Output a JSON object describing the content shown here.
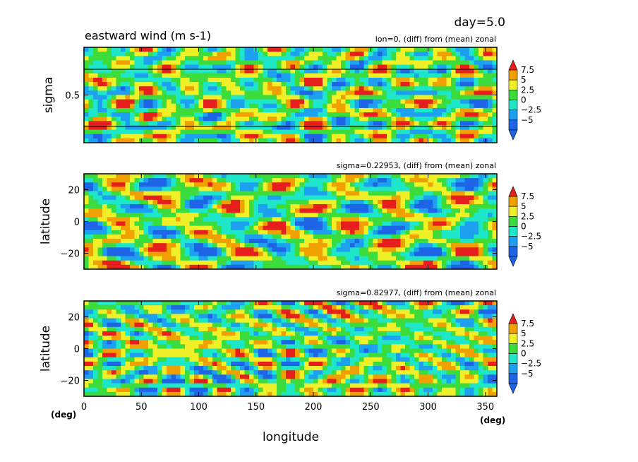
{
  "header": {
    "day_label": "day=5.0",
    "title": "eastward wind (m s-1)"
  },
  "colors": {
    "levels": [
      "#1e64e6",
      "#1ea0f0",
      "#1ee6c8",
      "#3cdc3c",
      "#f0f028",
      "#f0a000",
      "#e61e1e"
    ],
    "frame": "#000000"
  },
  "colorbar": {
    "tick_labels": [
      "7.5",
      "5",
      "2.5",
      "0",
      "−2.5",
      "−5"
    ]
  },
  "panels": [
    {
      "subtitle": "lon=0, (diff) from (mean) zonal",
      "ylabel": "sigma",
      "yticks": [
        "0.5"
      ]
    },
    {
      "subtitle": "sigma=0.22953, (diff) from (mean) zonal",
      "ylabel": "latitude",
      "yticks": [
        "20",
        "0",
        "−20"
      ]
    },
    {
      "subtitle": "sigma=0.82977, (diff) from (mean) zonal",
      "ylabel": "latitude",
      "yticks": [
        "20",
        "0",
        "−20"
      ]
    }
  ],
  "xaxis": {
    "label": "longitude",
    "ticks": [
      "0",
      "50",
      "100",
      "150",
      "200",
      "250",
      "300",
      "350"
    ],
    "unit_left": "(deg)",
    "unit_right": "(deg)"
  },
  "chart_data": [
    {
      "type": "heatmap",
      "variable": "eastward wind (m s-1)",
      "slice": "lon=0, (diff) from (mean) zonal",
      "x_range": [
        0,
        360
      ],
      "y_range": [
        0,
        1
      ],
      "ylabel": "sigma",
      "xlabel": "longitude",
      "contour_levels": [
        -5,
        -2.5,
        0,
        2.5,
        5,
        7.5
      ],
      "reference_lines_sigma": [
        0.22953,
        0.82977
      ]
    },
    {
      "type": "heatmap",
      "variable": "eastward wind (m s-1)",
      "slice": "sigma=0.22953, (diff) from (mean) zonal",
      "x_range": [
        0,
        360
      ],
      "y_range": [
        -30,
        30
      ],
      "ylabel": "latitude",
      "xlabel": "longitude",
      "contour_levels": [
        -5,
        -2.5,
        0,
        2.5,
        5,
        7.5
      ]
    },
    {
      "type": "heatmap",
      "variable": "eastward wind (m s-1)",
      "slice": "sigma=0.82977, (diff) from (mean) zonal",
      "x_range": [
        0,
        360
      ],
      "y_range": [
        -30,
        30
      ],
      "ylabel": "latitude",
      "xlabel": "longitude",
      "contour_levels": [
        -5,
        -2.5,
        0,
        2.5,
        5,
        7.5
      ]
    }
  ]
}
